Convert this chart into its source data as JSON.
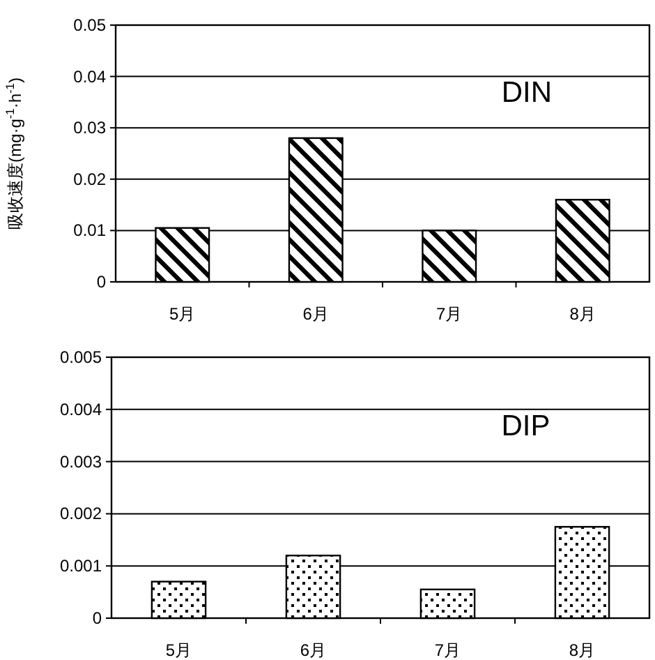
{
  "chart_data": [
    {
      "type": "bar",
      "ylabel": "吸收速度(mg·g$^{-1}$·h$^{-1}$)",
      "categories": [
        "5月",
        "6月",
        "7月",
        "8月"
      ],
      "values": [
        0.0105,
        0.028,
        0.01,
        0.016
      ],
      "color": "#000000",
      "ylim": [
        0,
        0.05
      ],
      "yticks": [
        0,
        0.01,
        0.02,
        0.03,
        0.04,
        0.05
      ],
      "grid": "y",
      "annotations": [
        "DIN"
      ]
    },
    {
      "type": "bar",
      "categories": [
        "5月",
        "6月",
        "7月",
        "8月"
      ],
      "values": [
        0.0007,
        0.0012,
        0.00055,
        0.00175
      ],
      "color": "#000000",
      "ylim": [
        0,
        0.005
      ],
      "yticks": [
        0,
        0.001,
        0.002,
        0.003,
        0.004,
        0.005
      ],
      "grid": "y",
      "annotations": [
        "DIP"
      ]
    }
  ]
}
